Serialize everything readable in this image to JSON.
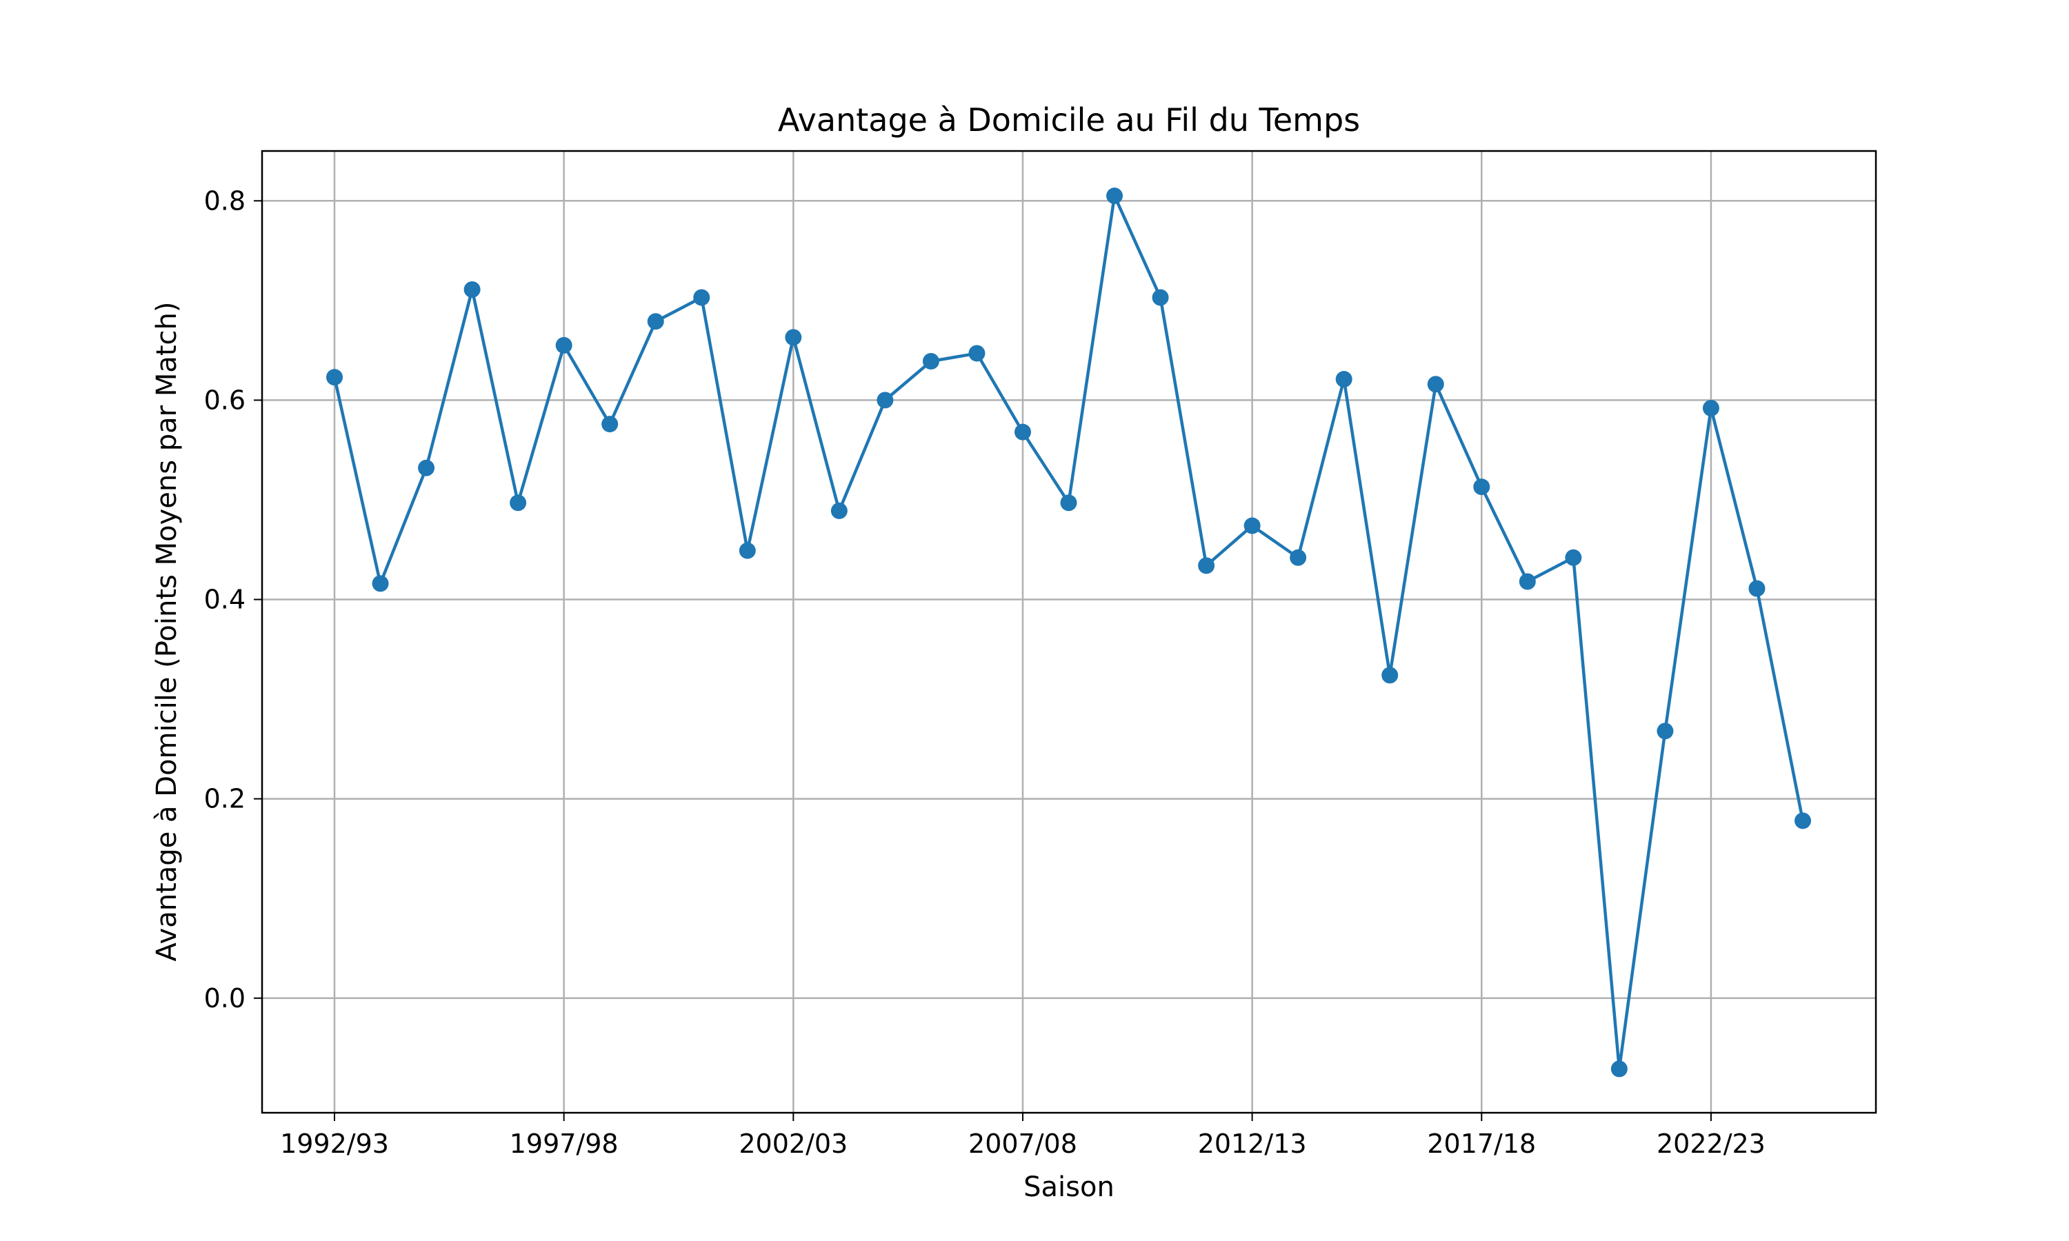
{
  "chart_data": {
    "type": "line",
    "title": "Avantage à Domicile au Fil du Temps",
    "xlabel": "Saison",
    "ylabel": "Avantage à Domicile (Points Moyens par Match)",
    "x": [
      "1992/93",
      "1993/94",
      "1994/95",
      "1995/96",
      "1996/97",
      "1997/98",
      "1998/99",
      "1999/00",
      "2000/01",
      "2001/02",
      "2002/03",
      "2003/04",
      "2004/05",
      "2005/06",
      "2006/07",
      "2007/08",
      "2008/09",
      "2009/10",
      "2010/11",
      "2011/12",
      "2012/13",
      "2013/14",
      "2014/15",
      "2015/16",
      "2016/17",
      "2017/18",
      "2018/19",
      "2019/20",
      "2020/21",
      "2021/22",
      "2022/23",
      "2023/24",
      "2024/25"
    ],
    "xticks": [
      "1992/93",
      "1997/98",
      "2002/03",
      "2007/08",
      "2012/13",
      "2017/18",
      "2022/23"
    ],
    "series": [
      {
        "values": [
          0.623,
          0.416,
          0.532,
          0.711,
          0.497,
          0.655,
          0.576,
          0.679,
          0.703,
          0.449,
          0.663,
          0.489,
          0.6,
          0.639,
          0.647,
          0.568,
          0.497,
          0.805,
          0.703,
          0.434,
          0.474,
          0.442,
          0.621,
          0.324,
          0.616,
          0.513,
          0.418,
          0.442,
          -0.071,
          0.268,
          0.592,
          0.411,
          0.178
        ],
        "color": "#1f77b4",
        "marker": "circle"
      }
    ],
    "yticks": [
      "0.0",
      "0.2",
      "0.4",
      "0.6",
      "0.8"
    ],
    "ylim": [
      -0.115,
      0.85
    ],
    "grid": true
  }
}
